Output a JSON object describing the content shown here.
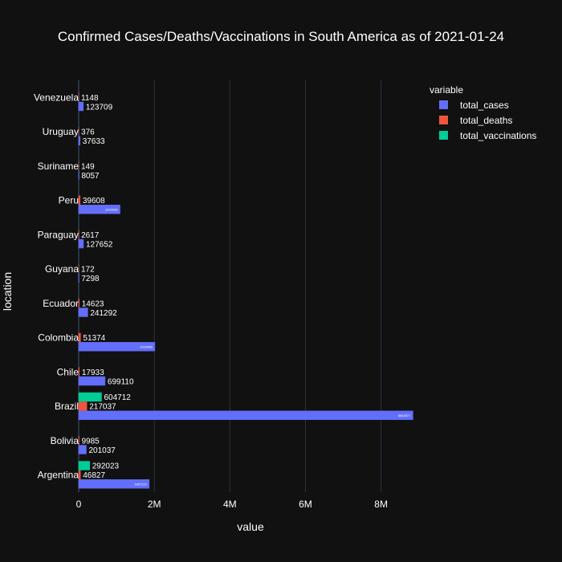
{
  "chart_data": {
    "type": "bar",
    "orientation": "horizontal",
    "barmode": "group",
    "title": "Confirmed Cases/Deaths/Vaccinations in South America as of 2021-01-24",
    "xlabel": "value",
    "ylabel": "location",
    "xlim": [
      0,
      8900000
    ],
    "xticks": [
      0,
      2000000,
      4000000,
      6000000,
      8000000
    ],
    "xtick_labels": [
      "0",
      "2M",
      "4M",
      "6M",
      "8M"
    ],
    "grid": true,
    "legend_title": "variable",
    "legend_position": "top-right",
    "categories": [
      "Venezuela",
      "Uruguay",
      "Suriname",
      "Peru",
      "Paraguay",
      "Guyana",
      "Ecuador",
      "Colombia",
      "Chile",
      "Brazil",
      "Bolivia",
      "Argentina"
    ],
    "series": [
      {
        "name": "total_cases",
        "color": "#636efa",
        "values": [
          123709,
          37633,
          8057,
          1093938,
          127652,
          7298,
          241292,
          2015485,
          699110,
          8844577,
          201037,
          1867223
        ],
        "labels": [
          "123709",
          "37633",
          "8057",
          "1093938",
          "127652",
          "7298",
          "241292",
          "2015485",
          "699110",
          "8844577",
          "201037",
          "1867223"
        ]
      },
      {
        "name": "total_deaths",
        "color": "#ef553b",
        "values": [
          1148,
          376,
          149,
          39608,
          2617,
          172,
          14623,
          51374,
          17933,
          217037,
          9985,
          46827
        ],
        "labels": [
          "1148",
          "376",
          "149",
          "39608",
          "2617",
          "172",
          "14623",
          "51374",
          "17933",
          "217037",
          "9985",
          "46827"
        ]
      },
      {
        "name": "total_vaccinations",
        "color": "#00cc96",
        "values": [
          null,
          null,
          null,
          null,
          null,
          null,
          null,
          null,
          null,
          604712,
          null,
          292023
        ],
        "labels": [
          null,
          null,
          null,
          null,
          null,
          null,
          null,
          null,
          null,
          "604712",
          null,
          "292023"
        ]
      }
    ]
  }
}
